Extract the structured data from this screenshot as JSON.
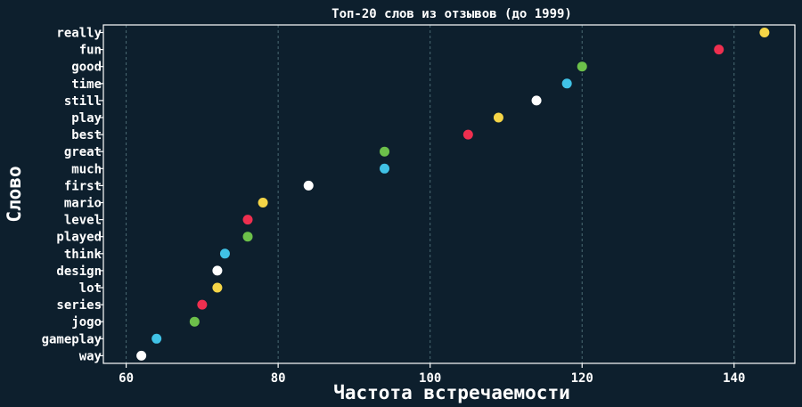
{
  "chart_data": {
    "type": "scatter",
    "title": "Топ-20 слов из отзывов (до 1999)",
    "xlabel": "Частота встречаемости",
    "ylabel": "Слово",
    "xlim": [
      57,
      148
    ],
    "xticks": [
      60,
      80,
      100,
      120,
      140
    ],
    "grid": "x",
    "categories": [
      "really",
      "fun",
      "good",
      "time",
      "still",
      "play",
      "best",
      "great",
      "much",
      "first",
      "mario",
      "level",
      "played",
      "think",
      "design",
      "lot",
      "series",
      "jogo",
      "gameplay",
      "way"
    ],
    "values": [
      144,
      138,
      120,
      118,
      114,
      109,
      105,
      94,
      94,
      84,
      78,
      76,
      76,
      73,
      72,
      72,
      70,
      69,
      64,
      62
    ],
    "point_colors": [
      "#f5d547",
      "#ee2f4f",
      "#6cc04a",
      "#40c2e6",
      "#ffffff",
      "#f5d547",
      "#ee2f4f",
      "#6cc04a",
      "#40c2e6",
      "#ffffff",
      "#f5d547",
      "#ee2f4f",
      "#6cc04a",
      "#40c2e6",
      "#ffffff",
      "#f5d547",
      "#ee2f4f",
      "#6cc04a",
      "#40c2e6",
      "#ffffff"
    ],
    "colors": {
      "background": "#0d1f2d",
      "text": "#ffffff",
      "grid": "#4a6a73"
    }
  }
}
